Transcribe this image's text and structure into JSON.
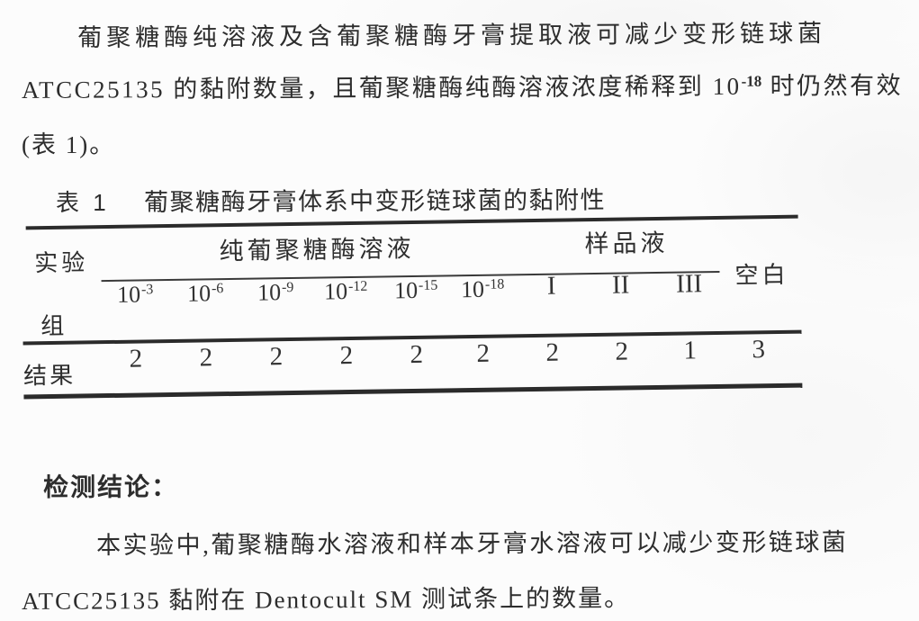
{
  "intro": {
    "line1": "葡聚糖酶纯溶液及含葡聚糖酶牙膏提取液可减少变形链球菌",
    "line2_pre": "ATCC25135 的黏附数量，且葡聚糖酶纯酶溶液浓度稀释到 10",
    "line2_sup": "-18",
    "line2_post": " 时仍然有效",
    "line3": "(表 1)。"
  },
  "table": {
    "caption_label": "表 1",
    "caption_title": "葡聚糖酶牙膏体系中变形链球菌的黏附性",
    "row_head_top": "实验",
    "row_head_bottom": "组",
    "group_header_dilution": "纯葡聚糖酶溶液",
    "group_header_sample": "样品液",
    "blank_header": "空白",
    "dilution_columns": [
      {
        "base": "10",
        "exp": "-3"
      },
      {
        "base": "10",
        "exp": "-6"
      },
      {
        "base": "10",
        "exp": "-9"
      },
      {
        "base": "10",
        "exp": "-12"
      },
      {
        "base": "10",
        "exp": "-15"
      },
      {
        "base": "10",
        "exp": "-18"
      }
    ],
    "sample_columns": [
      "I",
      "II",
      "III"
    ],
    "result_row_label": "结果",
    "result_values": [
      "2",
      "2",
      "2",
      "2",
      "2",
      "2",
      "2",
      "2",
      "1",
      "3"
    ]
  },
  "conclusion": {
    "heading": "检测结论：",
    "line1": "本实验中,葡聚糖酶水溶液和样本牙膏水溶液可以减少变形链球菌",
    "line2": "ATCC25135 黏附在 Dentocult SM 测试条上的数量。"
  },
  "colors": {
    "ink": "#2d2d2d",
    "rule": "#2b2b2b",
    "paper": "#fcfcfc"
  }
}
